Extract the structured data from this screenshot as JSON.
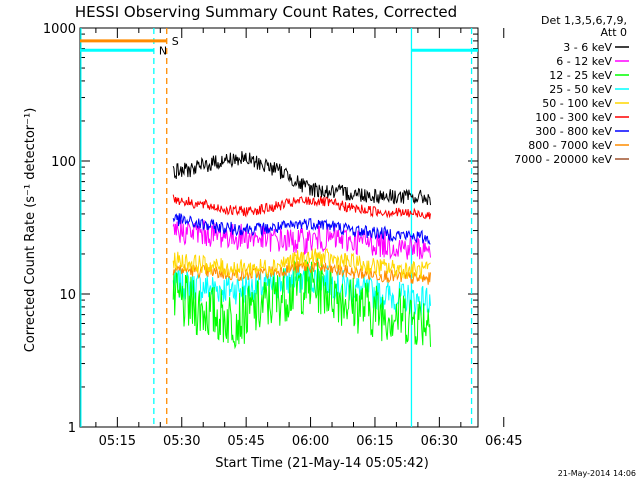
{
  "chart_data": {
    "type": "line",
    "title": "HESSI Observing Summary Count Rates, Corrected",
    "xlabel": "Start Time (21-May-14 05:05:42)",
    "ylabel": "Corrected Count Rate (s⁻¹ detector⁻¹)",
    "yscale": "log",
    "ylim": [
      1,
      1000
    ],
    "x_minutes_range": [
      6.3,
      99
    ],
    "x_ticks": [
      {
        "label": "05:15",
        "m": 15
      },
      {
        "label": "05:30",
        "m": 30
      },
      {
        "label": "05:45",
        "m": 45
      },
      {
        "label": "06:00",
        "m": 60
      },
      {
        "label": "06:15",
        "m": 75
      },
      {
        "label": "06:30",
        "m": 90
      },
      {
        "label": "06:45",
        "m": 105
      }
    ],
    "y_ticks": [
      {
        "label": "1",
        "v": 1
      },
      {
        "label": "10",
        "v": 10
      },
      {
        "label": "100",
        "v": 100
      },
      {
        "label": "1000",
        "v": 1000
      }
    ],
    "legend_header": [
      "Det 1,3,5,6,7,9,",
      "Att 0"
    ],
    "legend_position": "top-right, outside plot",
    "series": [
      {
        "name": "3 - 6 keV",
        "color": "#000000",
        "x_minutes": [
          28,
          33,
          38,
          42,
          45,
          50,
          55,
          58,
          62,
          66,
          70,
          75,
          80,
          85,
          88
        ],
        "values": [
          82,
          88,
          98,
          104,
          103,
          92,
          78,
          65,
          60,
          58,
          57,
          55,
          54,
          53,
          53
        ]
      },
      {
        "name": "6 - 12 keV",
        "color": "#ff00ff",
        "x_minutes": [
          28,
          33,
          38,
          42,
          45,
          50,
          55,
          58,
          62,
          66,
          70,
          75,
          80,
          85,
          88
        ],
        "values": [
          30,
          29,
          28,
          27,
          27,
          26,
          25,
          25,
          26,
          26,
          25,
          24,
          23,
          22,
          22
        ]
      },
      {
        "name": "12 - 25 keV",
        "color": "#00ff00",
        "x_minutes": [
          28,
          33,
          38,
          42,
          45,
          50,
          55,
          58,
          62,
          66,
          70,
          75,
          80,
          85,
          88
        ],
        "values": [
          9,
          8,
          7,
          6.5,
          7,
          8.5,
          10.5,
          11.5,
          11.5,
          10,
          8.5,
          7.5,
          7,
          6.5,
          6.5
        ]
      },
      {
        "name": "25 - 50 keV",
        "color": "#00ffff",
        "x_minutes": [
          28,
          33,
          38,
          42,
          45,
          50,
          55,
          58,
          62,
          66,
          70,
          75,
          80,
          85,
          88
        ],
        "values": [
          12,
          11.5,
          11,
          11,
          11,
          11.5,
          12.5,
          13,
          13,
          12,
          11,
          10,
          9.5,
          9,
          9
        ]
      },
      {
        "name": "50 - 100 keV",
        "color": "#ffd700",
        "x_minutes": [
          28,
          33,
          38,
          42,
          45,
          50,
          55,
          58,
          62,
          66,
          70,
          75,
          80,
          85,
          88
        ],
        "values": [
          18,
          17,
          16,
          15.5,
          15.5,
          16,
          17.5,
          18.5,
          19,
          18,
          17,
          16,
          15.5,
          15,
          15
        ]
      },
      {
        "name": "100 - 300 keV",
        "color": "#ff0000",
        "x_minutes": [
          28,
          33,
          38,
          42,
          45,
          50,
          55,
          58,
          62,
          66,
          70,
          75,
          80,
          85,
          88
        ],
        "values": [
          52,
          48,
          45,
          42,
          42,
          44,
          48,
          50,
          50,
          47,
          44,
          42,
          41,
          40,
          40
        ]
      },
      {
        "name": "300 - 800 keV",
        "color": "#0000ff",
        "x_minutes": [
          28,
          33,
          38,
          42,
          45,
          50,
          55,
          58,
          62,
          66,
          70,
          75,
          80,
          85,
          88
        ],
        "values": [
          37,
          34,
          32,
          31,
          31,
          31,
          32,
          34,
          34,
          32,
          30,
          29,
          28,
          27,
          26
        ]
      },
      {
        "name": "800 - 7000 keV",
        "color": "#ff8c00",
        "x_minutes": [
          28,
          33,
          38,
          42,
          45,
          50,
          55,
          58,
          62,
          66,
          70,
          75,
          80,
          85,
          88
        ],
        "values": [
          15.5,
          15,
          14.5,
          14,
          14,
          14.5,
          15.5,
          16,
          16,
          15,
          14.5,
          14,
          13.5,
          13,
          13
        ]
      },
      {
        "name": "7000 - 20000 keV",
        "color": "#a0522d",
        "x_minutes": [],
        "values": []
      }
    ],
    "flags": [
      {
        "label": "S",
        "color": "#ff8c00",
        "level": 800,
        "x_start": 6.3,
        "x_end": 26.5
      },
      {
        "label": "N",
        "color": "#00ffff",
        "level": 680,
        "x_start": 6.3,
        "x_end": 23.5
      },
      {
        "label": "",
        "color": "#00ffff",
        "level": 680,
        "x_start": 83.5,
        "x_end": 99
      }
    ],
    "vlines": [
      {
        "x": 23.5,
        "color": "#00ffff",
        "style": "dashed"
      },
      {
        "x": 26.5,
        "color": "#ff8c00",
        "style": "dashed"
      },
      {
        "x": 83.5,
        "color": "#00ffff",
        "style": "solid"
      },
      {
        "x": 97.5,
        "color": "#00ffff",
        "style": "dashed"
      },
      {
        "x": 6.5,
        "color": "#00ffff",
        "style": "solid"
      }
    ],
    "footer_date": "21-May-2014 14:06"
  }
}
